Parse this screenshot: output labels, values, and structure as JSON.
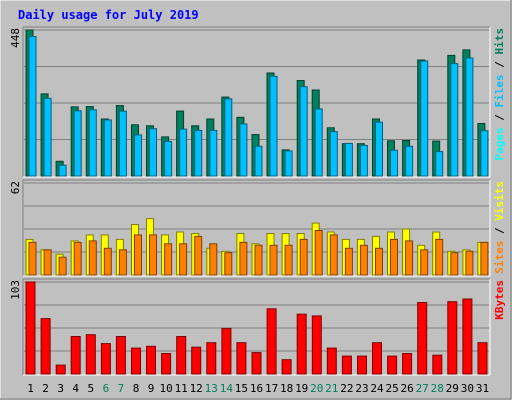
{
  "title": "Daily usage for July 2019",
  "colors": {
    "background": "#C0C0C0",
    "title": "#0000FF",
    "hits": "#00805C",
    "files": "#00C0FF",
    "pages": "#00FFFF",
    "sites": "#FF8000",
    "visits": "#FFFF00",
    "kbytes": "#FF0000",
    "weekend_label": "#00805C",
    "weekday_label": "#000000"
  },
  "chart_data": {
    "type": "bar",
    "title": "Daily usage for July 2019",
    "categories": [
      "1",
      "2",
      "3",
      "4",
      "5",
      "6",
      "7",
      "8",
      "9",
      "10",
      "11",
      "12",
      "13",
      "14",
      "15",
      "16",
      "17",
      "18",
      "19",
      "20",
      "21",
      "22",
      "23",
      "24",
      "25",
      "26",
      "27",
      "28",
      "29",
      "30",
      "31"
    ],
    "weekend_days": [
      "6",
      "7",
      "13",
      "14",
      "20",
      "21",
      "27",
      "28"
    ],
    "panels": [
      {
        "name": "hits-files-pages",
        "ymax_label": "448",
        "ymax": 448,
        "legend": [
          {
            "text": "Pages",
            "color": "#00FFFF"
          },
          {
            "text": " / ",
            "color": "#000000"
          },
          {
            "text": "Files",
            "color": "#00C0FF"
          },
          {
            "text": " / ",
            "color": "#000000"
          },
          {
            "text": "Hits",
            "color": "#00805C"
          }
        ],
        "series": [
          {
            "name": "Hits",
            "values": [
              448,
              252,
              45,
              212,
              213,
              175,
              216,
              157,
              154,
              120,
              199,
              154,
              175,
              242,
              180,
              127,
              316,
              80,
              293,
              264,
              148,
              99,
              99,
              175,
              108,
              109,
              356,
              107,
              370,
              387,
              161
            ]
          },
          {
            "name": "Files",
            "values": [
              428,
              238,
              33,
              200,
              203,
              172,
              199,
              126,
              145,
              106,
              144,
              140,
              140,
              237,
              160,
              91,
              306,
              77,
              274,
              206,
              136,
              100,
              94,
              165,
              79,
              91,
              353,
              75,
              345,
              362,
              139
            ]
          }
        ]
      },
      {
        "name": "sites-visits",
        "ymax_label": "62",
        "ymax": 62,
        "legend": [
          {
            "text": "Sites",
            "color": "#FF8000"
          },
          {
            "text": " / ",
            "color": "#000000"
          },
          {
            "text": "Visits",
            "color": "#FFFF00"
          }
        ],
        "series": [
          {
            "name": "Visits",
            "values": [
              24,
              17,
              14,
              23,
              27,
              27,
              24,
              34,
              38,
              27,
              29,
              28,
              18,
              16,
              28,
              21,
              28,
              28,
              28,
              35,
              29,
              24,
              24,
              26,
              29,
              31,
              20,
              29,
              16,
              17,
              22
            ]
          },
          {
            "name": "Sites",
            "values": [
              22,
              17,
              12,
              22,
              23,
              18,
              17,
              27,
              27,
              21,
              21,
              26,
              21,
              15,
              22,
              20,
              20,
              20,
              24,
              30,
              27,
              18,
              20,
              18,
              24,
              23,
              17,
              24,
              15,
              16,
              22
            ]
          }
        ]
      },
      {
        "name": "kbytes",
        "ymax_label": "103",
        "ymax": 103,
        "legend": [
          {
            "text": "KBytes",
            "color": "#FF0000"
          }
        ],
        "series": [
          {
            "name": "KBytes",
            "values": [
              103,
              62,
              10,
              42,
              44,
              34,
              42,
              29,
              31,
              23,
              42,
              30,
              35,
              51,
              35,
              24,
              73,
              16,
              67,
              65,
              29,
              20,
              20,
              35,
              20,
              23,
              80,
              21,
              81,
              84,
              35
            ]
          }
        ]
      }
    ]
  }
}
